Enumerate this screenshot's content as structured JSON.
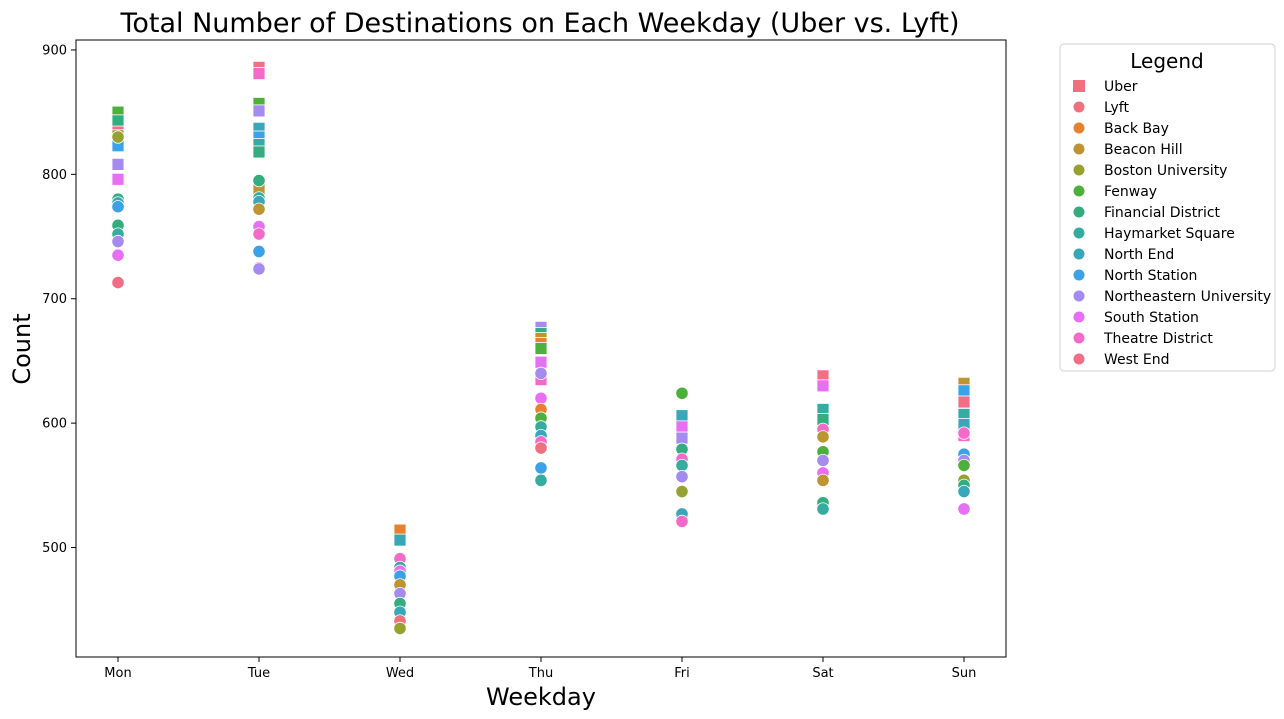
{
  "chart_data": {
    "type": "scatter",
    "title": "Total Number of Destinations on Each Weekday (Uber vs. Lyft)",
    "xlabel": "Weekday",
    "ylabel": "Count",
    "categories": [
      "Mon",
      "Tue",
      "Wed",
      "Thu",
      "Fri",
      "Sat",
      "Sun"
    ],
    "ylim": [
      412,
      908
    ],
    "yticks": [
      500,
      600,
      700,
      800,
      900
    ],
    "legend_title": "Legend",
    "legend_position": "outside-right",
    "grid": false,
    "legend": [
      {
        "label": "Uber",
        "marker": "square",
        "color": "#f0707f"
      },
      {
        "label": "Lyft",
        "marker": "circle",
        "color": "#f0707f"
      },
      {
        "label": "Back Bay",
        "marker": "circle",
        "color": "#e5812f"
      },
      {
        "label": "Beacon Hill",
        "marker": "circle",
        "color": "#bc9431"
      },
      {
        "label": "Boston University",
        "marker": "circle",
        "color": "#96a131"
      },
      {
        "label": "Fenway",
        "marker": "circle",
        "color": "#4eb03c"
      },
      {
        "label": "Financial District",
        "marker": "circle",
        "color": "#34ac7f"
      },
      {
        "label": "Haymarket Square",
        "marker": "circle",
        "color": "#36aba0"
      },
      {
        "label": "North End",
        "marker": "circle",
        "color": "#38a7b8"
      },
      {
        "label": "North Station",
        "marker": "circle",
        "color": "#3ba2e8"
      },
      {
        "label": "Northeastern University",
        "marker": "circle",
        "color": "#a58af0"
      },
      {
        "label": "South Station",
        "marker": "circle",
        "color": "#e76ff3"
      },
      {
        "label": "Theatre District",
        "marker": "circle",
        "color": "#f46ac9"
      },
      {
        "label": "West End",
        "marker": "circle",
        "color": "#f46d86"
      }
    ],
    "series": [
      {
        "name": "Uber",
        "marker": "square",
        "points": [
          {
            "x": "Mon",
            "y": 850,
            "color": "#4eb03c"
          },
          {
            "x": "Mon",
            "y": 843,
            "color": "#34ac7f"
          },
          {
            "x": "Mon",
            "y": 834,
            "color": "#f46d86"
          },
          {
            "x": "Mon",
            "y": 831,
            "color": "#96a131"
          },
          {
            "x": "Mon",
            "y": 823,
            "color": "#3ba2e8"
          },
          {
            "x": "Mon",
            "y": 808,
            "color": "#a58af0"
          },
          {
            "x": "Mon",
            "y": 796,
            "color": "#e76ff3"
          },
          {
            "x": "Tue",
            "y": 886,
            "color": "#f46d86"
          },
          {
            "x": "Tue",
            "y": 881,
            "color": "#f46ac9"
          },
          {
            "x": "Tue",
            "y": 857,
            "color": "#4eb03c"
          },
          {
            "x": "Tue",
            "y": 851,
            "color": "#a58af0"
          },
          {
            "x": "Tue",
            "y": 837,
            "color": "#38a7b8"
          },
          {
            "x": "Tue",
            "y": 830,
            "color": "#3ba2e8"
          },
          {
            "x": "Tue",
            "y": 824,
            "color": "#36aba0"
          },
          {
            "x": "Tue",
            "y": 818,
            "color": "#34ac7f"
          },
          {
            "x": "Tue",
            "y": 788,
            "color": "#bc9431"
          },
          {
            "x": "Wed",
            "y": 514,
            "color": "#e5812f"
          },
          {
            "x": "Wed",
            "y": 506,
            "color": "#38a7b8"
          },
          {
            "x": "Thu",
            "y": 677,
            "color": "#a58af0"
          },
          {
            "x": "Thu",
            "y": 672,
            "color": "#34ac7f"
          },
          {
            "x": "Thu",
            "y": 668,
            "color": "#bc9431"
          },
          {
            "x": "Thu",
            "y": 664,
            "color": "#e5812f"
          },
          {
            "x": "Thu",
            "y": 660,
            "color": "#4eb03c"
          },
          {
            "x": "Thu",
            "y": 649,
            "color": "#e76ff3"
          },
          {
            "x": "Thu",
            "y": 635,
            "color": "#f46ac9"
          },
          {
            "x": "Fri",
            "y": 606,
            "color": "#38a7b8"
          },
          {
            "x": "Fri",
            "y": 597,
            "color": "#e76ff3"
          },
          {
            "x": "Fri",
            "y": 588,
            "color": "#a58af0"
          },
          {
            "x": "Sat",
            "y": 638,
            "color": "#f46d86"
          },
          {
            "x": "Sat",
            "y": 630,
            "color": "#e76ff3"
          },
          {
            "x": "Sat",
            "y": 611,
            "color": "#36aba0"
          },
          {
            "x": "Sat",
            "y": 603,
            "color": "#34ac7f"
          },
          {
            "x": "Sun",
            "y": 632,
            "color": "#bc9431"
          },
          {
            "x": "Sun",
            "y": 626,
            "color": "#3ba2e8"
          },
          {
            "x": "Sun",
            "y": 617,
            "color": "#f46d86"
          },
          {
            "x": "Sun",
            "y": 607,
            "color": "#36aba0"
          },
          {
            "x": "Sun",
            "y": 599,
            "color": "#38a7b8"
          },
          {
            "x": "Sun",
            "y": 590,
            "color": "#f46ac9"
          }
        ]
      },
      {
        "name": "Lyft",
        "marker": "circle",
        "points": [
          {
            "x": "Mon",
            "y": 830,
            "color": "#96a131"
          },
          {
            "x": "Mon",
            "y": 780,
            "color": "#34ac7f"
          },
          {
            "x": "Mon",
            "y": 777,
            "color": "#38a7b8"
          },
          {
            "x": "Mon",
            "y": 774,
            "color": "#3ba2e8"
          },
          {
            "x": "Mon",
            "y": 759,
            "color": "#34ac7f"
          },
          {
            "x": "Mon",
            "y": 752,
            "color": "#36aba0"
          },
          {
            "x": "Mon",
            "y": 746,
            "color": "#a58af0"
          },
          {
            "x": "Mon",
            "y": 735,
            "color": "#e76ff3"
          },
          {
            "x": "Mon",
            "y": 713,
            "color": "#f46d86"
          },
          {
            "x": "Tue",
            "y": 795,
            "color": "#34ac7f"
          },
          {
            "x": "Tue",
            "y": 781,
            "color": "#36aba0"
          },
          {
            "x": "Tue",
            "y": 778,
            "color": "#38a7b8"
          },
          {
            "x": "Tue",
            "y": 772,
            "color": "#bc9431"
          },
          {
            "x": "Tue",
            "y": 758,
            "color": "#e76ff3"
          },
          {
            "x": "Tue",
            "y": 752,
            "color": "#f46ac9"
          },
          {
            "x": "Tue",
            "y": 738,
            "color": "#3ba2e8"
          },
          {
            "x": "Tue",
            "y": 725,
            "color": "#f0707f"
          },
          {
            "x": "Tue",
            "y": 724,
            "color": "#a58af0"
          },
          {
            "x": "Wed",
            "y": 491,
            "color": "#f46ac9"
          },
          {
            "x": "Wed",
            "y": 484,
            "color": "#36aba0"
          },
          {
            "x": "Wed",
            "y": 481,
            "color": "#e76ff3"
          },
          {
            "x": "Wed",
            "y": 477,
            "color": "#3ba2e8"
          },
          {
            "x": "Wed",
            "y": 470,
            "color": "#bc9431"
          },
          {
            "x": "Wed",
            "y": 463,
            "color": "#a58af0"
          },
          {
            "x": "Wed",
            "y": 455,
            "color": "#34ac7f"
          },
          {
            "x": "Wed",
            "y": 448,
            "color": "#38a7b8"
          },
          {
            "x": "Wed",
            "y": 441,
            "color": "#f0707f"
          },
          {
            "x": "Wed",
            "y": 435,
            "color": "#96a131"
          },
          {
            "x": "Thu",
            "y": 640,
            "color": "#a58af0"
          },
          {
            "x": "Thu",
            "y": 620,
            "color": "#e76ff3"
          },
          {
            "x": "Thu",
            "y": 611,
            "color": "#e5812f"
          },
          {
            "x": "Thu",
            "y": 604,
            "color": "#4eb03c"
          },
          {
            "x": "Thu",
            "y": 597,
            "color": "#36aba0"
          },
          {
            "x": "Thu",
            "y": 590,
            "color": "#38a7b8"
          },
          {
            "x": "Thu",
            "y": 585,
            "color": "#f46ac9"
          },
          {
            "x": "Thu",
            "y": 580,
            "color": "#f0707f"
          },
          {
            "x": "Thu",
            "y": 564,
            "color": "#3ba2e8"
          },
          {
            "x": "Thu",
            "y": 554,
            "color": "#36aba0"
          },
          {
            "x": "Fri",
            "y": 624,
            "color": "#4eb03c"
          },
          {
            "x": "Fri",
            "y": 579,
            "color": "#34ac7f"
          },
          {
            "x": "Fri",
            "y": 571,
            "color": "#f46ac9"
          },
          {
            "x": "Fri",
            "y": 566,
            "color": "#36aba0"
          },
          {
            "x": "Fri",
            "y": 557,
            "color": "#a58af0"
          },
          {
            "x": "Fri",
            "y": 545,
            "color": "#96a131"
          },
          {
            "x": "Fri",
            "y": 527,
            "color": "#38a7b8"
          },
          {
            "x": "Fri",
            "y": 521,
            "color": "#f46ac9"
          },
          {
            "x": "Sat",
            "y": 595,
            "color": "#f46ac9"
          },
          {
            "x": "Sat",
            "y": 589,
            "color": "#bc9431"
          },
          {
            "x": "Sat",
            "y": 577,
            "color": "#4eb03c"
          },
          {
            "x": "Sat",
            "y": 570,
            "color": "#a58af0"
          },
          {
            "x": "Sat",
            "y": 560,
            "color": "#e76ff3"
          },
          {
            "x": "Sat",
            "y": 554,
            "color": "#bc9431"
          },
          {
            "x": "Sat",
            "y": 536,
            "color": "#34ac7f"
          },
          {
            "x": "Sat",
            "y": 531,
            "color": "#36aba0"
          },
          {
            "x": "Sun",
            "y": 592,
            "color": "#f46ac9"
          },
          {
            "x": "Sun",
            "y": 575,
            "color": "#3ba2e8"
          },
          {
            "x": "Sun",
            "y": 570,
            "color": "#a58af0"
          },
          {
            "x": "Sun",
            "y": 566,
            "color": "#4eb03c"
          },
          {
            "x": "Sun",
            "y": 554,
            "color": "#96a131"
          },
          {
            "x": "Sun",
            "y": 550,
            "color": "#34ac7f"
          },
          {
            "x": "Sun",
            "y": 545,
            "color": "#38a7b8"
          },
          {
            "x": "Sun",
            "y": 531,
            "color": "#e76ff3"
          }
        ]
      }
    ]
  }
}
